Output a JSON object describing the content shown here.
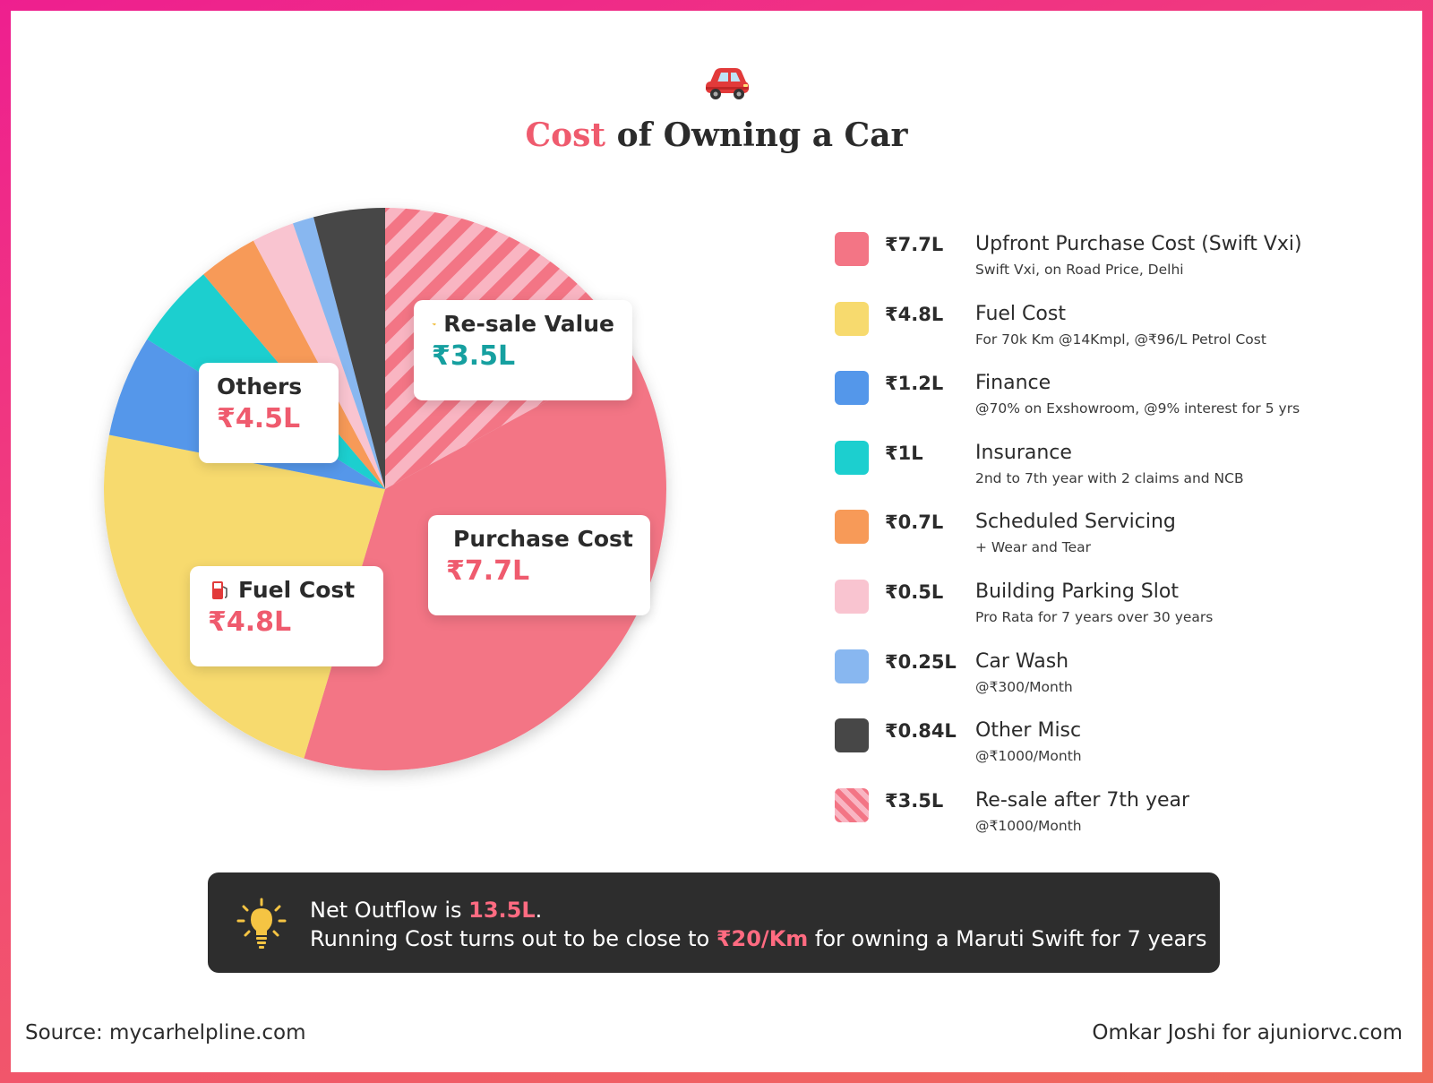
{
  "header": {
    "icon": "red-car-icon",
    "title_accent": "Cost",
    "title_rest": " of Owning a Car"
  },
  "colors": {
    "purchase": "#f37585",
    "fuel": "#f7da6e",
    "finance": "#5497ea",
    "insurance": "#1ccfcf",
    "servicing": "#f79a58",
    "parking": "#f9c4d0",
    "carwash": "#88b7f0",
    "misc": "#474747",
    "resale_bg": "#f9b5c2",
    "resale_stripe": "#f37585",
    "accent": "#ef5b6e",
    "teal": "#16a0a0"
  },
  "callouts": {
    "resale": {
      "name": "Re-sale Value",
      "value": "₹3.5L",
      "icon": "handshake-icon"
    },
    "others": {
      "name": "Others",
      "value": "₹4.5L"
    },
    "purchase": {
      "name": "Purchase Cost",
      "value": "₹7.7L",
      "icon": "money-icon"
    },
    "fuel": {
      "name": "Fuel Cost",
      "value": "₹4.8L",
      "icon": "fuel-pump-icon"
    }
  },
  "legend": [
    {
      "value": "₹7.7L",
      "title": "Upfront Purchase Cost (Swift Vxi)",
      "sub": "Swift Vxi, on Road Price, Delhi",
      "color": "#f37585"
    },
    {
      "value": "₹4.8L",
      "title": "Fuel Cost",
      "sub": "For 70k Km @14Kmpl, @₹96/L Petrol Cost",
      "color": "#f7da6e"
    },
    {
      "value": "₹1.2L",
      "title": "Finance",
      "sub": "@70% on Exshowroom, @9% interest for 5 yrs",
      "color": "#5497ea"
    },
    {
      "value": "₹1L",
      "title": "Insurance",
      "sub": "2nd to 7th year with 2 claims and NCB",
      "color": "#1ccfcf"
    },
    {
      "value": "₹0.7L",
      "title": "Scheduled Servicing",
      "sub": "+ Wear and Tear",
      "color": "#f79a58"
    },
    {
      "value": "₹0.5L",
      "title": "Building Parking Slot",
      "sub": "Pro Rata for 7 years over 30 years",
      "color": "#f9c4d0"
    },
    {
      "value": "₹0.25L",
      "title": "Car Wash",
      "sub": "@₹300/Month",
      "color": "#88b7f0"
    },
    {
      "value": "₹0.84L",
      "title": "Other Misc",
      "sub": "@₹1000/Month",
      "color": "#474747"
    },
    {
      "value": "₹3.5L",
      "title": "Re-sale after 7th year",
      "sub": "@₹1000/Month",
      "color": "striped"
    }
  ],
  "note": {
    "icon": "lightbulb-icon",
    "line1_pre": "Net Outflow is ",
    "line1_hl": "13.5L",
    "line1_post": ".",
    "line2_pre": "Running Cost turns out to be close to ",
    "line2_hl": "₹20/Km",
    "line2_post": " for owning a Maruti Swift for 7 years"
  },
  "footer": {
    "source": "Source: mycarhelpline.com",
    "credit": "Omkar Joshi for ajuniorvc.com"
  },
  "chart_data": {
    "type": "pie",
    "title": "Cost of Owning a Car",
    "unit": "₹ Lakh",
    "categories": [
      "Re-sale Value",
      "Upfront Purchase Cost (Swift Vxi)",
      "Fuel Cost",
      "Finance",
      "Insurance",
      "Scheduled Servicing",
      "Building Parking Slot",
      "Car Wash",
      "Other Misc"
    ],
    "values": [
      3.5,
      7.7,
      4.8,
      1.2,
      1.0,
      0.7,
      0.5,
      0.25,
      0.84
    ],
    "colors": [
      "striped",
      "#f37585",
      "#f7da6e",
      "#5497ea",
      "#1ccfcf",
      "#f79a58",
      "#f9c4d0",
      "#88b7f0",
      "#474747"
    ],
    "legend_position": "right"
  }
}
